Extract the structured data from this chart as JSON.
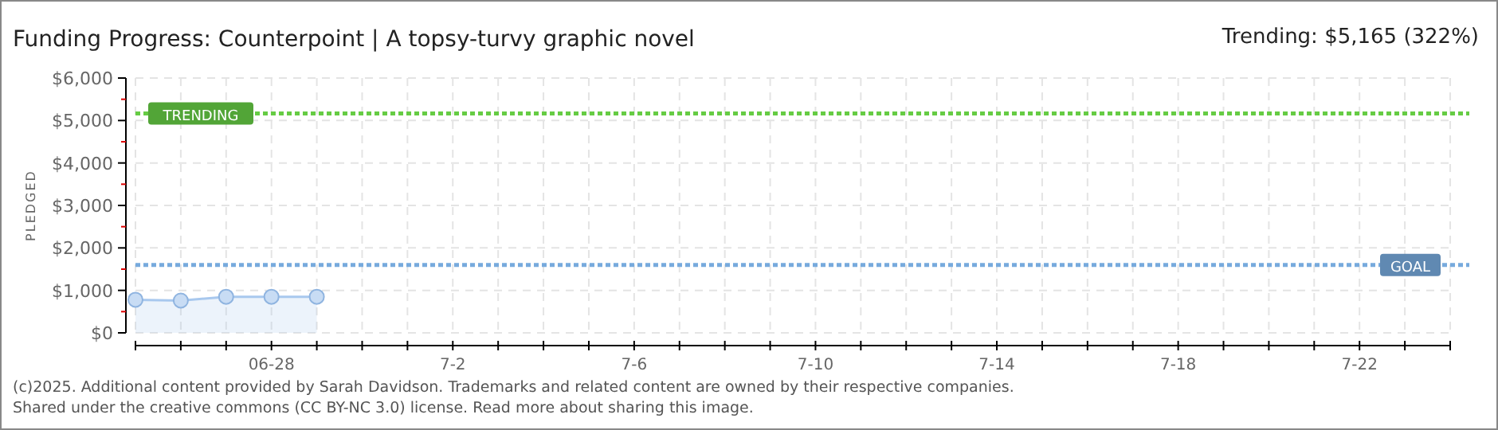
{
  "chart_data": {
    "type": "area",
    "title": "Funding Progress: Counterpoint | A topsy-turvy graphic novel",
    "subtitle": "Trending:  $5,165 (322%)",
    "ylabel": "PLEDGED",
    "x": [
      "2025-06-25",
      "2025-06-26",
      "2025-06-27",
      "2025-06-28",
      "2025-06-29"
    ],
    "series": [
      {
        "color": "#a8c8ee",
        "values": [
          780,
          760,
          850,
          850,
          850
        ]
      }
    ],
    "marker": "circle",
    "grid": true,
    "xlim": [
      "2025-06-25",
      "2025-07-24"
    ],
    "xticks": [
      {
        "value": "2025-06-25",
        "label": null
      },
      {
        "value": "2025-06-26",
        "label": null
      },
      {
        "value": "2025-06-27",
        "label": null
      },
      {
        "value": "2025-06-28",
        "label": "06-28"
      },
      {
        "value": "2025-06-29",
        "label": null
      },
      {
        "value": "2025-06-30",
        "label": null
      },
      {
        "value": "2025-07-01",
        "label": null
      },
      {
        "value": "2025-07-02",
        "label": "7-2"
      },
      {
        "value": "2025-07-03",
        "label": null
      },
      {
        "value": "2025-07-04",
        "label": null
      },
      {
        "value": "2025-07-05",
        "label": null
      },
      {
        "value": "2025-07-06",
        "label": "7-6"
      },
      {
        "value": "2025-07-07",
        "label": null
      },
      {
        "value": "2025-07-08",
        "label": null
      },
      {
        "value": "2025-07-09",
        "label": null
      },
      {
        "value": "2025-07-10",
        "label": "7-10"
      },
      {
        "value": "2025-07-11",
        "label": null
      },
      {
        "value": "2025-07-12",
        "label": null
      },
      {
        "value": "2025-07-13",
        "label": null
      },
      {
        "value": "2025-07-14",
        "label": "7-14"
      },
      {
        "value": "2025-07-15",
        "label": null
      },
      {
        "value": "2025-07-16",
        "label": null
      },
      {
        "value": "2025-07-17",
        "label": null
      },
      {
        "value": "2025-07-18",
        "label": "7-18"
      },
      {
        "value": "2025-07-19",
        "label": null
      },
      {
        "value": "2025-07-20",
        "label": null
      },
      {
        "value": "2025-07-21",
        "label": null
      },
      {
        "value": "2025-07-22",
        "label": "7-22"
      },
      {
        "value": "2025-07-23",
        "label": null
      },
      {
        "value": "2025-07-24",
        "label": null
      }
    ],
    "ylim": [
      0,
      6000
    ],
    "yticks": [
      {
        "value": 0,
        "label": "$0"
      },
      {
        "value": 500,
        "label": null
      },
      {
        "value": 1000,
        "label": "$1,000"
      },
      {
        "value": 1500,
        "label": null
      },
      {
        "value": 2000,
        "label": "$2,000"
      },
      {
        "value": 2500,
        "label": null
      },
      {
        "value": 3000,
        "label": "$3,000"
      },
      {
        "value": 3500,
        "label": null
      },
      {
        "value": 4000,
        "label": "$4,000"
      },
      {
        "value": 4500,
        "label": null
      },
      {
        "value": 5000,
        "label": "$5,000"
      },
      {
        "value": 5500,
        "label": null
      },
      {
        "value": 6000,
        "label": "$6,000"
      }
    ],
    "ref_lines": [
      {
        "axis": "y",
        "value": 5165,
        "label": "TRENDING",
        "color": "#66cc44",
        "line_style": "dotted"
      },
      {
        "axis": "y",
        "value": 1600,
        "label": "GOAL",
        "color": "#77aadd",
        "line_style": "dotted"
      }
    ],
    "annotations": [
      "(c)2025. Additional content provided by Sarah Davidson. Trademarks and related content are owned by their respective companies.",
      "Shared under the creative commons (CC BY-NC 3.0) license. Read more about sharing this image."
    ]
  }
}
